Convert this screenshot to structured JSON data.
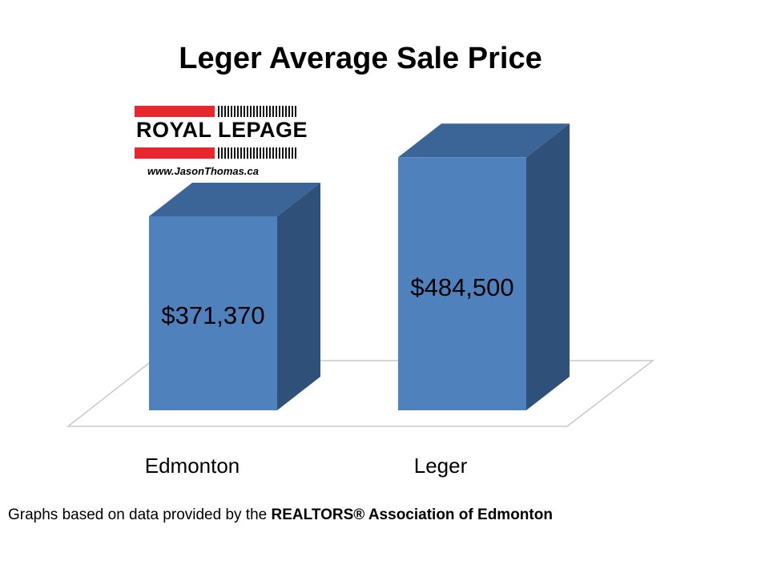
{
  "chart_data": {
    "type": "bar",
    "title": "Leger Average Sale Price",
    "categories": [
      "Edmonton",
      "Leger"
    ],
    "values": [
      371370,
      484500
    ],
    "data_labels": [
      "$371,370",
      "$484,500"
    ],
    "style": "3d",
    "bar_color": "#4f81bd",
    "bar_side_color": "#2f5078",
    "bar_top_color": "#3b6596"
  },
  "logo": {
    "brand": "ROYAL LEPAGE",
    "url": "www.JasonThomas.ca",
    "brand_color": "#e8262d"
  },
  "footer": {
    "prefix": "Graphs based on data provided by the ",
    "source": "REALTORS® Association of Edmonton"
  }
}
